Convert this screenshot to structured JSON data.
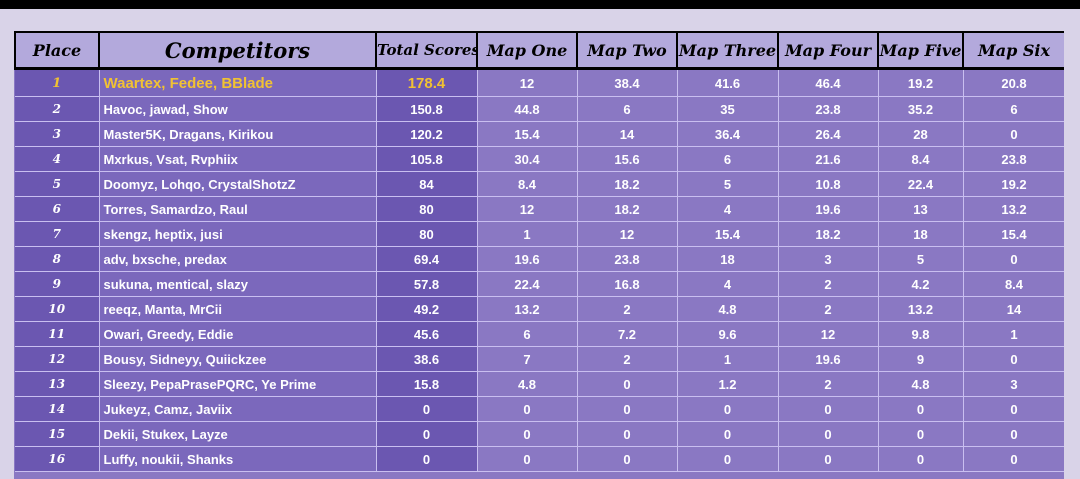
{
  "headers": {
    "place": "Place",
    "competitors": "Competitors",
    "total": "Total Scores",
    "map1": "Map One",
    "map2": "Map Two",
    "map3": "Map Three",
    "map4": "Map Four",
    "map5": "Map Five",
    "map6": "Map Six"
  },
  "colors": {
    "header_bg": "#b3a9dc",
    "row_bg": "#8a78c3",
    "highlight_col_bg": "#6b57b1",
    "first_place_text": "#f1c232",
    "page_bg": "#d9d3e8"
  },
  "rows": [
    {
      "place": "1",
      "team": "Waartex, Fedee, BBlade",
      "total": "178.4",
      "m1": "12",
      "m2": "38.4",
      "m3": "41.6",
      "m4": "46.4",
      "m5": "19.2",
      "m6": "20.8"
    },
    {
      "place": "2",
      "team": "Havoc, jawad, Show",
      "total": "150.8",
      "m1": "44.8",
      "m2": "6",
      "m3": "35",
      "m4": "23.8",
      "m5": "35.2",
      "m6": "6"
    },
    {
      "place": "3",
      "team": "Master5K, Dragans, Kirikou",
      "total": "120.2",
      "m1": "15.4",
      "m2": "14",
      "m3": "36.4",
      "m4": "26.4",
      "m5": "28",
      "m6": "0"
    },
    {
      "place": "4",
      "team": "Mxrkus, Vsat, Rvphiix",
      "total": "105.8",
      "m1": "30.4",
      "m2": "15.6",
      "m3": "6",
      "m4": "21.6",
      "m5": "8.4",
      "m6": "23.8"
    },
    {
      "place": "5",
      "team": "Doomyz, Lohqo, CrystalShotzZ",
      "total": "84",
      "m1": "8.4",
      "m2": "18.2",
      "m3": "5",
      "m4": "10.8",
      "m5": "22.4",
      "m6": "19.2"
    },
    {
      "place": "6",
      "team": "Torres, Samardzo, Raul",
      "total": "80",
      "m1": "12",
      "m2": "18.2",
      "m3": "4",
      "m4": "19.6",
      "m5": "13",
      "m6": "13.2"
    },
    {
      "place": "7",
      "team": "skengz, heptix, jusi",
      "total": "80",
      "m1": "1",
      "m2": "12",
      "m3": "15.4",
      "m4": "18.2",
      "m5": "18",
      "m6": "15.4"
    },
    {
      "place": "8",
      "team": "adv, bxsche, predax",
      "total": "69.4",
      "m1": "19.6",
      "m2": "23.8",
      "m3": "18",
      "m4": "3",
      "m5": "5",
      "m6": "0"
    },
    {
      "place": "9",
      "team": "sukuna, mentical, slazy",
      "total": "57.8",
      "m1": "22.4",
      "m2": "16.8",
      "m3": "4",
      "m4": "2",
      "m5": "4.2",
      "m6": "8.4"
    },
    {
      "place": "10",
      "team": "reeqz, Manta, MrCii",
      "total": "49.2",
      "m1": "13.2",
      "m2": "2",
      "m3": "4.8",
      "m4": "2",
      "m5": "13.2",
      "m6": "14"
    },
    {
      "place": "11",
      "team": "Owari, Greedy, Eddie",
      "total": "45.6",
      "m1": "6",
      "m2": "7.2",
      "m3": "9.6",
      "m4": "12",
      "m5": "9.8",
      "m6": "1"
    },
    {
      "place": "12",
      "team": "Bousy, Sidneyy, Quiickzee",
      "total": "38.6",
      "m1": "7",
      "m2": "2",
      "m3": "1",
      "m4": "19.6",
      "m5": "9",
      "m6": "0"
    },
    {
      "place": "13",
      "team": "Sleezy, PepaPrasePQRC, Ye Prime",
      "total": "15.8",
      "m1": "4.8",
      "m2": "0",
      "m3": "1.2",
      "m4": "2",
      "m5": "4.8",
      "m6": "3"
    },
    {
      "place": "14",
      "team": "Jukeyz, Camz, Javiix",
      "total": "0",
      "m1": "0",
      "m2": "0",
      "m3": "0",
      "m4": "0",
      "m5": "0",
      "m6": "0"
    },
    {
      "place": "15",
      "team": "Dekii, Stukex, Layze",
      "total": "0",
      "m1": "0",
      "m2": "0",
      "m3": "0",
      "m4": "0",
      "m5": "0",
      "m6": "0"
    },
    {
      "place": "16",
      "team": "Luffy, noukii, Shanks",
      "total": "0",
      "m1": "0",
      "m2": "0",
      "m3": "0",
      "m4": "0",
      "m5": "0",
      "m6": "0"
    }
  ]
}
